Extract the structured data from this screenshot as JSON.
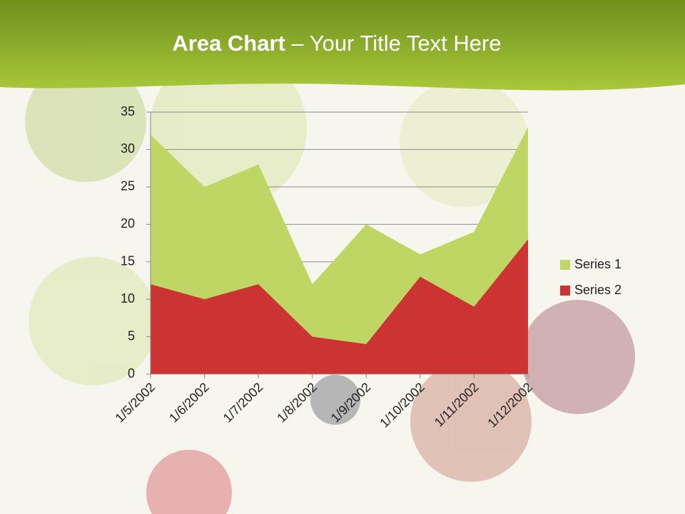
{
  "slide": {
    "title_bold": "Area Chart",
    "title_rest": " – Your Title Text Here"
  },
  "chart_data": {
    "type": "area",
    "categories": [
      "1/5/2002",
      "1/6/2002",
      "1/7/2002",
      "1/8/2002",
      "1/9/2002",
      "1/10/2002",
      "1/11/2002",
      "1/12/2002"
    ],
    "series": [
      {
        "name": "Series 1",
        "color": "#c0d664",
        "values": [
          32,
          25,
          28,
          12,
          20,
          16,
          19,
          33
        ]
      },
      {
        "name": "Series 2",
        "color": "#cc3333",
        "values": [
          12,
          10,
          12,
          5,
          4,
          13,
          9,
          18
        ]
      }
    ],
    "ylim": [
      0,
      35
    ],
    "yticks": [
      0,
      5,
      10,
      15,
      20,
      25,
      30,
      35
    ],
    "grid": true,
    "legend": "right"
  }
}
